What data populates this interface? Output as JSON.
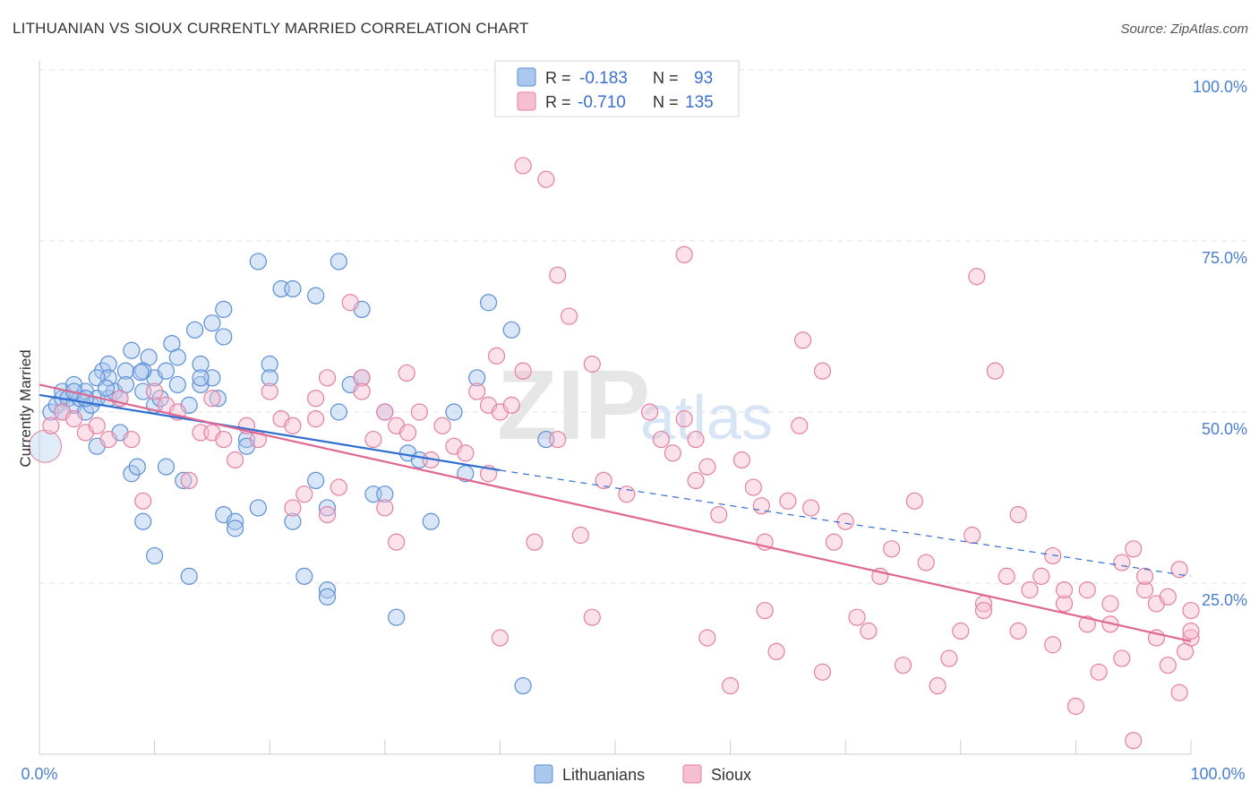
{
  "title": "LITHUANIAN VS SIOUX CURRENTLY MARRIED CORRELATION CHART",
  "source": "Source: ZipAtlas.com",
  "watermark": {
    "zip": "ZIP",
    "atlas": "atlas"
  },
  "chart_data": {
    "type": "scatter",
    "ylabel": "Currently Married",
    "x_tick_labels": [
      "0.0%",
      "100.0%"
    ],
    "y_tick_labels": [
      "100.0%",
      "75.0%",
      "50.0%",
      "25.0%"
    ],
    "xlim": [
      0,
      100
    ],
    "ylim": [
      0,
      100
    ],
    "grid": "horizontal dashed",
    "legend_position": "top-center",
    "bottom_legend": [
      "Lithuanians",
      "Sioux"
    ],
    "stats": [
      {
        "r_label": "R =",
        "r": "-0.183",
        "n_label": "N =",
        "n": "93"
      },
      {
        "r_label": "R =",
        "r": "-0.710",
        "n_label": "N =",
        "n": "135"
      }
    ],
    "colors": {
      "blue_fill": "#aac8ee",
      "blue_stroke": "#5b8fd6",
      "blue_line": "#2f6fd0",
      "pink_fill": "#f6bfd0",
      "pink_stroke": "#e57fa2",
      "pink_line": "#e0678f",
      "tick_text": "#4a7fd1"
    },
    "series": [
      {
        "name": "Lithuanians",
        "trend": {
          "x0": 0,
          "y0": 52.5,
          "x1": 40,
          "y1": 41.5,
          "dash_to_x": 100,
          "dash_to_y": 26.0
        },
        "points": [
          [
            1,
            50
          ],
          [
            1.5,
            51
          ],
          [
            2,
            52
          ],
          [
            2,
            53
          ],
          [
            2.5,
            52
          ],
          [
            3,
            54
          ],
          [
            3,
            51
          ],
          [
            3.5,
            52
          ],
          [
            4,
            50
          ],
          [
            4,
            53
          ],
          [
            4.5,
            51
          ],
          [
            5,
            45
          ],
          [
            5,
            52
          ],
          [
            5.5,
            56
          ],
          [
            6,
            52
          ],
          [
            6,
            57
          ],
          [
            6.5,
            53
          ],
          [
            7,
            47
          ],
          [
            7,
            52
          ],
          [
            7.5,
            56
          ],
          [
            8,
            59
          ],
          [
            8,
            41
          ],
          [
            8.5,
            42
          ],
          [
            9,
            53
          ],
          [
            9,
            34
          ],
          [
            9.5,
            58
          ],
          [
            10,
            55
          ],
          [
            10,
            51
          ],
          [
            10.5,
            52
          ],
          [
            11,
            56
          ],
          [
            11.5,
            60
          ],
          [
            12,
            58
          ],
          [
            12,
            54
          ],
          [
            12.5,
            40
          ],
          [
            13,
            26
          ],
          [
            13.5,
            62
          ],
          [
            14,
            57
          ],
          [
            14,
            54
          ],
          [
            15,
            63
          ],
          [
            15,
            55
          ],
          [
            15.5,
            52
          ],
          [
            16,
            61
          ],
          [
            16,
            65
          ],
          [
            16,
            35
          ],
          [
            17,
            34
          ],
          [
            17,
            33
          ],
          [
            18,
            46
          ],
          [
            18,
            45
          ],
          [
            19,
            36
          ],
          [
            19,
            72
          ],
          [
            20,
            57
          ],
          [
            20,
            55
          ],
          [
            21,
            68
          ],
          [
            22,
            68
          ],
          [
            22,
            34
          ],
          [
            23,
            26
          ],
          [
            24,
            40
          ],
          [
            24,
            67
          ],
          [
            25,
            24
          ],
          [
            25,
            23
          ],
          [
            25,
            36
          ],
          [
            26,
            50
          ],
          [
            26,
            72
          ],
          [
            27,
            54
          ],
          [
            28,
            55
          ],
          [
            28,
            65
          ],
          [
            29,
            38
          ],
          [
            30,
            38
          ],
          [
            30,
            50
          ],
          [
            31,
            20
          ],
          [
            32,
            44
          ],
          [
            33,
            43
          ],
          [
            34,
            34
          ],
          [
            36,
            50
          ],
          [
            37,
            41
          ],
          [
            38,
            55
          ],
          [
            39,
            66
          ],
          [
            41,
            62
          ],
          [
            42,
            10
          ],
          [
            44,
            46
          ],
          [
            6,
            55
          ],
          [
            5,
            55
          ],
          [
            3,
            53
          ],
          [
            2,
            50
          ],
          [
            4,
            52
          ],
          [
            7.5,
            54
          ],
          [
            11,
            42
          ],
          [
            13,
            51
          ],
          [
            9,
            56
          ],
          [
            14,
            55
          ],
          [
            10,
            29
          ],
          [
            5.8,
            53.5
          ],
          [
            8.8,
            55.8
          ]
        ]
      },
      {
        "name": "Sioux",
        "trend": {
          "x0": 0,
          "y0": 54,
          "x1": 100,
          "y1": 16.5
        },
        "points": [
          [
            1,
            48
          ],
          [
            2,
            50
          ],
          [
            3,
            49
          ],
          [
            4,
            47
          ],
          [
            5,
            48
          ],
          [
            6,
            46
          ],
          [
            7,
            52
          ],
          [
            8,
            46
          ],
          [
            9,
            37
          ],
          [
            10,
            53
          ],
          [
            11,
            51
          ],
          [
            12,
            50
          ],
          [
            13,
            40
          ],
          [
            14,
            47
          ],
          [
            15,
            47
          ],
          [
            15,
            52
          ],
          [
            16,
            46
          ],
          [
            17,
            43
          ],
          [
            18,
            48
          ],
          [
            19,
            46
          ],
          [
            20,
            53
          ],
          [
            21,
            49
          ],
          [
            22,
            48
          ],
          [
            22,
            36
          ],
          [
            23,
            38
          ],
          [
            24,
            49
          ],
          [
            24,
            52
          ],
          [
            25,
            55
          ],
          [
            25,
            35
          ],
          [
            26,
            39
          ],
          [
            27,
            66
          ],
          [
            28,
            55
          ],
          [
            28,
            53
          ],
          [
            29,
            46
          ],
          [
            30,
            36
          ],
          [
            30,
            50
          ],
          [
            31,
            48
          ],
          [
            31,
            31
          ],
          [
            32,
            47
          ],
          [
            33,
            50
          ],
          [
            34,
            43
          ],
          [
            35,
            48
          ],
          [
            36,
            45
          ],
          [
            37,
            44
          ],
          [
            38,
            53
          ],
          [
            39,
            51
          ],
          [
            39,
            41
          ],
          [
            40,
            50
          ],
          [
            40,
            17
          ],
          [
            41,
            51
          ],
          [
            42,
            56
          ],
          [
            42,
            86
          ],
          [
            43,
            31
          ],
          [
            44,
            84
          ],
          [
            45,
            46
          ],
          [
            45,
            70
          ],
          [
            46,
            64
          ],
          [
            47,
            32
          ],
          [
            48,
            20
          ],
          [
            48,
            57
          ],
          [
            49,
            40
          ],
          [
            51,
            38
          ],
          [
            53,
            50
          ],
          [
            54,
            46
          ],
          [
            55,
            44
          ],
          [
            56,
            49
          ],
          [
            56,
            73
          ],
          [
            57,
            40
          ],
          [
            57,
            46
          ],
          [
            58,
            42
          ],
          [
            58,
            17
          ],
          [
            59,
            35
          ],
          [
            60,
            10
          ],
          [
            61,
            43
          ],
          [
            62,
            39
          ],
          [
            63,
            21
          ],
          [
            63,
            31
          ],
          [
            64,
            15
          ],
          [
            65,
            37
          ],
          [
            66,
            48
          ],
          [
            67,
            36
          ],
          [
            68,
            12
          ],
          [
            68,
            56
          ],
          [
            69,
            31
          ],
          [
            70,
            34
          ],
          [
            71,
            20
          ],
          [
            72,
            18
          ],
          [
            73,
            26
          ],
          [
            74,
            30
          ],
          [
            75,
            13
          ],
          [
            76,
            37
          ],
          [
            77,
            28
          ],
          [
            78,
            10
          ],
          [
            79,
            14
          ],
          [
            80,
            18
          ],
          [
            81,
            32
          ],
          [
            82,
            22
          ],
          [
            82,
            21
          ],
          [
            83,
            56
          ],
          [
            84,
            26
          ],
          [
            85,
            35
          ],
          [
            85,
            18
          ],
          [
            86,
            24
          ],
          [
            87,
            26
          ],
          [
            88,
            29
          ],
          [
            88,
            16
          ],
          [
            89,
            22
          ],
          [
            89,
            24
          ],
          [
            90,
            7
          ],
          [
            91,
            19
          ],
          [
            91,
            24
          ],
          [
            92,
            12
          ],
          [
            93,
            19
          ],
          [
            93,
            22
          ],
          [
            94,
            28
          ],
          [
            94,
            14
          ],
          [
            95,
            2
          ],
          [
            95,
            30
          ],
          [
            96,
            24
          ],
          [
            96,
            26
          ],
          [
            97,
            22
          ],
          [
            97,
            17
          ],
          [
            98,
            13
          ],
          [
            98,
            23
          ],
          [
            99,
            27
          ],
          [
            99,
            9
          ],
          [
            100,
            21
          ],
          [
            100,
            17
          ],
          [
            100,
            18
          ],
          [
            99.5,
            15
          ],
          [
            62.7,
            36.3
          ],
          [
            39.7,
            58.2
          ],
          [
            31.9,
            55.7
          ],
          [
            66.3,
            60.5
          ],
          [
            81.4,
            69.8
          ]
        ]
      }
    ]
  }
}
